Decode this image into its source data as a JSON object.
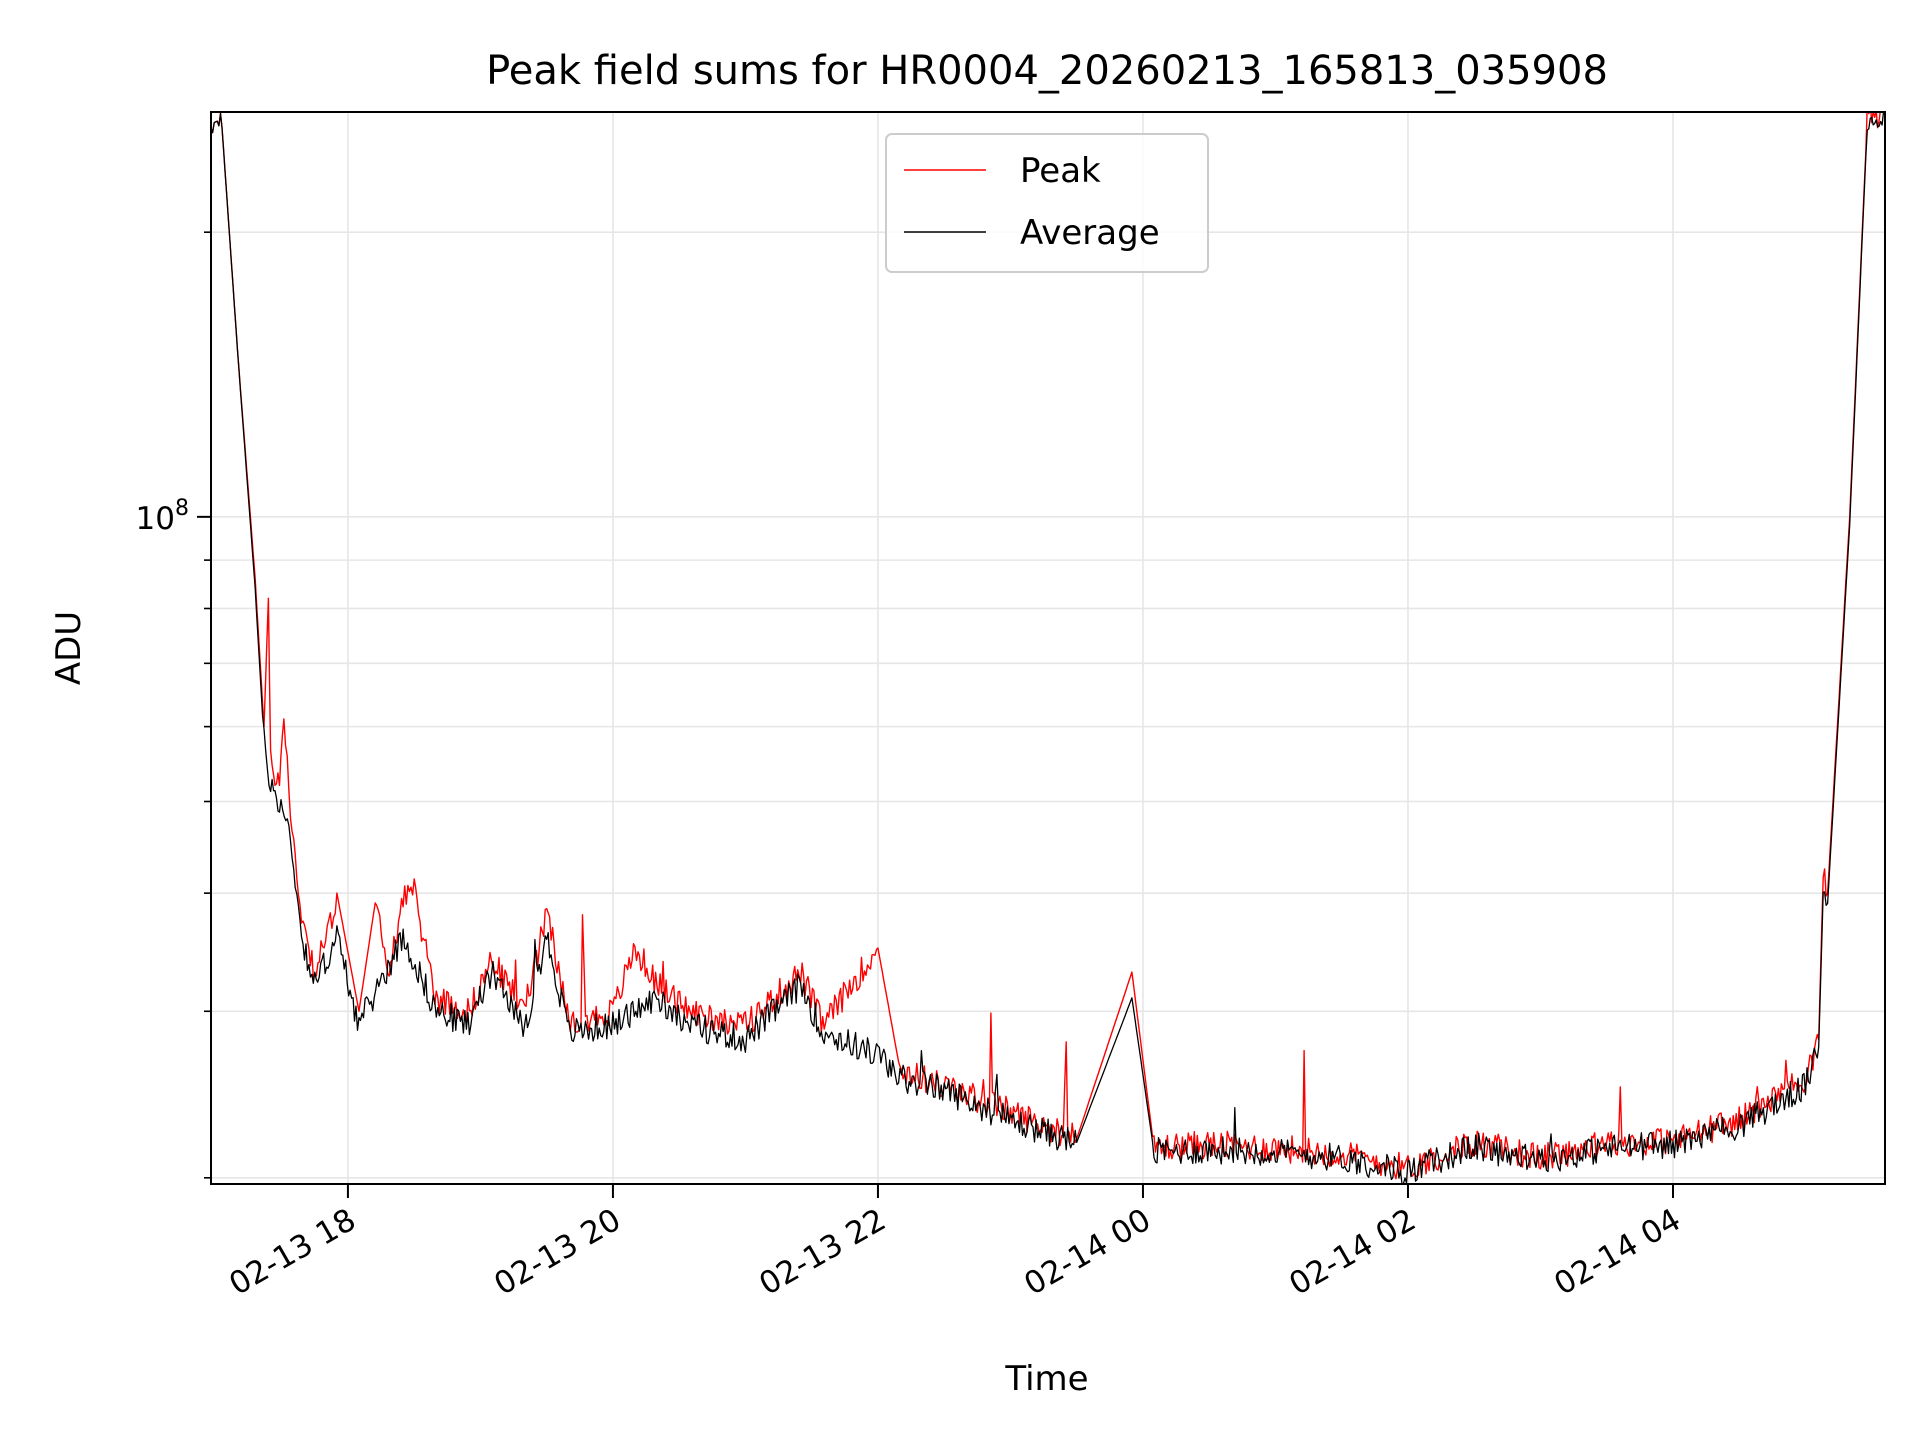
{
  "chart_data": {
    "type": "line",
    "title": "Peak field sums for HR0004_20260213_165813_035908",
    "xlabel": "Time",
    "ylabel": "ADU",
    "yscale": "log",
    "grid": true,
    "legend_placement": "top-center",
    "x_ticks": [
      "02-13 18",
      "02-13 20",
      "02-13 22",
      "02-14 00",
      "02-14 02",
      "02-14 04"
    ],
    "y_tick_labels": [
      {
        "value": 100000000,
        "base": "10",
        "exponent": "8"
      }
    ],
    "x_range": [
      "2026-02-13 16:58",
      "2026-02-14 05:36"
    ],
    "y_range": [
      19700000,
      268000000
    ],
    "series": [
      {
        "name": "Peak",
        "color": "#ff0000",
        "points": [
          [
            "2026-02-13 16:58",
            262000000
          ],
          [
            "2026-02-13 17:03",
            258000000
          ],
          [
            "2026-02-13 17:10",
            150000000
          ],
          [
            "2026-02-13 17:18",
            86000000
          ],
          [
            "2026-02-13 17:22",
            60000000
          ],
          [
            "2026-02-13 17:24",
            82000000
          ],
          [
            "2026-02-13 17:25",
            55000000
          ],
          [
            "2026-02-13 17:29",
            52000000
          ],
          [
            "2026-02-13 17:31",
            63000000
          ],
          [
            "2026-02-13 17:34",
            48000000
          ],
          [
            "2026-02-13 17:39",
            38000000
          ],
          [
            "2026-02-13 17:45",
            33000000
          ],
          [
            "2026-02-13 17:52",
            37000000
          ],
          [
            "2026-02-13 17:55",
            40000000
          ],
          [
            "2026-02-13 18:05",
            30000000
          ],
          [
            "2026-02-13 18:13",
            40000000
          ],
          [
            "2026-02-13 18:18",
            32000000
          ],
          [
            "2026-02-13 18:25",
            40000000
          ],
          [
            "2026-02-13 18:30",
            40000000
          ],
          [
            "2026-02-13 18:40",
            31000000
          ],
          [
            "2026-02-13 18:55",
            30000000
          ],
          [
            "2026-02-13 19:05",
            34000000
          ],
          [
            "2026-02-13 19:20",
            30000000
          ],
          [
            "2026-02-13 19:30",
            38000000
          ],
          [
            "2026-02-13 19:40",
            29000000
          ],
          [
            "2026-02-13 20:00",
            30000000
          ],
          [
            "2026-02-13 20:10",
            35000000
          ],
          [
            "2026-02-13 20:20",
            32000000
          ],
          [
            "2026-02-13 20:35",
            30000000
          ],
          [
            "2026-02-13 21:00",
            29000000
          ],
          [
            "2026-02-13 21:25",
            33000000
          ],
          [
            "2026-02-13 21:35",
            29000000
          ],
          [
            "2026-02-13 22:00",
            35000000
          ],
          [
            "2026-02-13 22:10",
            26000000
          ],
          [
            "2026-02-13 22:30",
            25000000
          ],
          [
            "2026-02-13 23:00",
            23500000
          ],
          [
            "2026-02-13 23:30",
            22000000
          ],
          [
            "2026-02-13 23:55",
            33000000
          ],
          [
            "2026-02-14 00:05",
            21500000
          ],
          [
            "2026-02-14 00:30",
            21700000
          ],
          [
            "2026-02-14 01:00",
            21500000
          ],
          [
            "2026-02-14 01:30",
            21200000
          ],
          [
            "2026-02-14 02:00",
            20500000
          ],
          [
            "2026-02-14 02:30",
            21800000
          ],
          [
            "2026-02-14 03:00",
            21000000
          ],
          [
            "2026-02-14 03:30",
            21700000
          ],
          [
            "2026-02-14 04:00",
            21900000
          ],
          [
            "2026-02-14 04:30",
            23000000
          ],
          [
            "2026-02-14 05:00",
            25500000
          ],
          [
            "2026-02-14 05:06",
            28000000
          ],
          [
            "2026-02-14 05:08",
            42000000
          ],
          [
            "2026-02-14 05:10",
            40000000
          ],
          [
            "2026-02-14 05:20",
            100000000
          ],
          [
            "2026-02-14 05:28",
            265000000
          ],
          [
            "2026-02-14 05:36",
            268000000
          ]
        ]
      },
      {
        "name": "Average",
        "color": "#000000",
        "points": [
          [
            "2026-02-13 16:58",
            262000000
          ],
          [
            "2026-02-13 17:03",
            258000000
          ],
          [
            "2026-02-13 17:10",
            150000000
          ],
          [
            "2026-02-13 17:18",
            84000000
          ],
          [
            "2026-02-13 17:22",
            58000000
          ],
          [
            "2026-02-13 17:25",
            52000000
          ],
          [
            "2026-02-13 17:29",
            50000000
          ],
          [
            "2026-02-13 17:34",
            46000000
          ],
          [
            "2026-02-13 17:39",
            36000000
          ],
          [
            "2026-02-13 17:45",
            32000000
          ],
          [
            "2026-02-13 17:55",
            36000000
          ],
          [
            "2026-02-13 18:05",
            29000000
          ],
          [
            "2026-02-13 18:25",
            36000000
          ],
          [
            "2026-02-13 18:40",
            30000000
          ],
          [
            "2026-02-13 18:55",
            29000000
          ],
          [
            "2026-02-13 19:05",
            33000000
          ],
          [
            "2026-02-13 19:20",
            28500000
          ],
          [
            "2026-02-13 19:30",
            36000000
          ],
          [
            "2026-02-13 19:40",
            28500000
          ],
          [
            "2026-02-13 20:00",
            29000000
          ],
          [
            "2026-02-13 20:20",
            31000000
          ],
          [
            "2026-02-13 20:35",
            29000000
          ],
          [
            "2026-02-13 21:00",
            28000000
          ],
          [
            "2026-02-13 21:25",
            32000000
          ],
          [
            "2026-02-13 21:35",
            28500000
          ],
          [
            "2026-02-13 22:00",
            27000000
          ],
          [
            "2026-02-13 22:10",
            25500000
          ],
          [
            "2026-02-13 22:30",
            24800000
          ],
          [
            "2026-02-13 23:00",
            23000000
          ],
          [
            "2026-02-13 23:30",
            21800000
          ],
          [
            "2026-02-13 23:55",
            31000000
          ],
          [
            "2026-02-14 00:05",
            21300000
          ],
          [
            "2026-02-14 00:30",
            21400000
          ],
          [
            "2026-02-14 01:00",
            21300000
          ],
          [
            "2026-02-14 01:30",
            21000000
          ],
          [
            "2026-02-14 02:00",
            20300000
          ],
          [
            "2026-02-14 02:30",
            21600000
          ],
          [
            "2026-02-14 03:00",
            20800000
          ],
          [
            "2026-02-14 03:30",
            21500000
          ],
          [
            "2026-02-14 04:00",
            21700000
          ],
          [
            "2026-02-14 04:30",
            22700000
          ],
          [
            "2026-02-14 05:00",
            25000000
          ],
          [
            "2026-02-14 05:06",
            27500000
          ],
          [
            "2026-02-14 05:08",
            40000000
          ],
          [
            "2026-02-14 05:10",
            39000000
          ],
          [
            "2026-02-14 05:20",
            98000000
          ],
          [
            "2026-02-14 05:28",
            262000000
          ],
          [
            "2026-02-14 05:36",
            267000000
          ]
        ]
      }
    ]
  }
}
